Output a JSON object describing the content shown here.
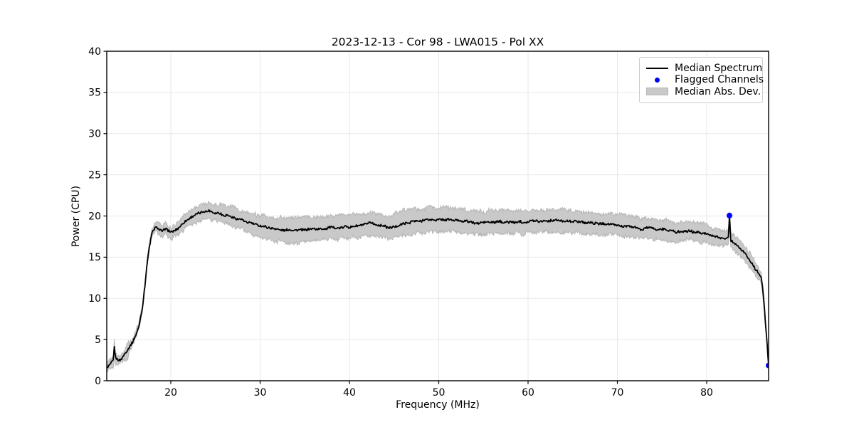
{
  "chart_data": {
    "type": "line",
    "title": "2023-12-13 - Cor 98 - LWA015 - Pol XX",
    "xlabel": "Frequency (MHz)",
    "ylabel": "Power (CPU)",
    "xlim": [
      12.83,
      86.93
    ],
    "ylim": [
      0,
      40
    ],
    "xticks": [
      20,
      30,
      40,
      50,
      60,
      70,
      80
    ],
    "yticks": [
      0,
      5,
      10,
      15,
      20,
      25,
      30,
      35,
      40
    ],
    "grid": true,
    "legend": {
      "position": "upper right",
      "entries": [
        {
          "label": "Median Spectrum",
          "type": "line",
          "color": "#000000"
        },
        {
          "label": "Flagged Channels",
          "type": "marker",
          "color": "#0000ff"
        },
        {
          "label": "Median Abs. Dev.",
          "type": "patch",
          "color": "#c9c9c9"
        }
      ]
    },
    "series": [
      {
        "name": "Median Spectrum",
        "color": "#000000",
        "points_fpm": [
          [
            12.88,
            1.6,
            0.45
          ],
          [
            13.1,
            1.85,
            0.5
          ],
          [
            13.35,
            2.15,
            0.55
          ],
          [
            13.55,
            2.35,
            0.65
          ],
          [
            13.68,
            4.05,
            0.95
          ],
          [
            13.82,
            2.75,
            0.6
          ],
          [
            14.1,
            2.45,
            0.5
          ],
          [
            14.4,
            2.6,
            0.45
          ],
          [
            14.7,
            3.0,
            0.5
          ],
          [
            15.0,
            3.45,
            0.85
          ],
          [
            15.18,
            3.75,
            1.05
          ],
          [
            15.4,
            4.15,
            0.5
          ],
          [
            15.7,
            4.65,
            0.4
          ],
          [
            16.0,
            5.35,
            0.4
          ],
          [
            16.4,
            6.5,
            0.4
          ],
          [
            16.8,
            8.6,
            0.4
          ],
          [
            17.1,
            11.5,
            0.4
          ],
          [
            17.3,
            13.8,
            0.35
          ],
          [
            17.6,
            16.2,
            0.35
          ],
          [
            17.9,
            17.9,
            0.45
          ],
          [
            18.2,
            18.5,
            0.55
          ],
          [
            18.5,
            18.65,
            0.6
          ],
          [
            18.8,
            18.3,
            0.65
          ],
          [
            19.1,
            18.1,
            0.65
          ],
          [
            19.4,
            18.55,
            0.7
          ],
          [
            19.7,
            18.25,
            0.7
          ],
          [
            20.0,
            17.95,
            0.75
          ],
          [
            20.4,
            18.2,
            0.75
          ],
          [
            20.8,
            18.45,
            0.8
          ],
          [
            21.2,
            18.9,
            0.8
          ],
          [
            21.7,
            19.4,
            0.85
          ],
          [
            22.2,
            19.75,
            0.9
          ],
          [
            22.7,
            20.1,
            0.95
          ],
          [
            23.2,
            20.4,
            1.0
          ],
          [
            23.7,
            20.65,
            1.0
          ],
          [
            24.2,
            20.6,
            1.0
          ],
          [
            24.7,
            20.45,
            1.05
          ],
          [
            25.2,
            20.35,
            1.05
          ],
          [
            25.7,
            20.2,
            1.1
          ],
          [
            26.2,
            20.1,
            1.1
          ],
          [
            26.7,
            19.95,
            1.1
          ],
          [
            27.2,
            19.8,
            1.15
          ],
          [
            27.7,
            19.6,
            1.15
          ],
          [
            28.2,
            19.4,
            1.2
          ],
          [
            28.7,
            19.2,
            1.2
          ],
          [
            29.2,
            19.0,
            1.25
          ],
          [
            29.7,
            18.85,
            1.3
          ],
          [
            30.2,
            18.7,
            1.3
          ],
          [
            31.0,
            18.55,
            1.35
          ],
          [
            32.0,
            18.4,
            1.45
          ],
          [
            33.0,
            18.3,
            1.5
          ],
          [
            34.0,
            18.3,
            1.55
          ],
          [
            35.0,
            18.35,
            1.5
          ],
          [
            36.0,
            18.4,
            1.45
          ],
          [
            37.0,
            18.5,
            1.4
          ],
          [
            38.0,
            18.55,
            1.4
          ],
          [
            39.0,
            18.6,
            1.4
          ],
          [
            40.0,
            18.7,
            1.4
          ],
          [
            41.0,
            18.85,
            1.4
          ],
          [
            42.0,
            19.05,
            1.4
          ],
          [
            42.6,
            19.1,
            1.4
          ],
          [
            43.2,
            18.9,
            1.4
          ],
          [
            44.0,
            18.75,
            1.4
          ],
          [
            44.6,
            18.6,
            1.4
          ],
          [
            45.2,
            18.8,
            1.45
          ],
          [
            46.0,
            19.1,
            1.5
          ],
          [
            47.0,
            19.3,
            1.5
          ],
          [
            48.0,
            19.45,
            1.5
          ],
          [
            49.0,
            19.5,
            1.5
          ],
          [
            50.0,
            19.6,
            1.5
          ],
          [
            51.0,
            19.6,
            1.45
          ],
          [
            52.0,
            19.5,
            1.45
          ],
          [
            53.0,
            19.35,
            1.4
          ],
          [
            54.0,
            19.2,
            1.4
          ],
          [
            55.0,
            19.15,
            1.4
          ],
          [
            56.0,
            19.25,
            1.4
          ],
          [
            57.0,
            19.3,
            1.4
          ],
          [
            58.0,
            19.3,
            1.4
          ],
          [
            59.0,
            19.25,
            1.4
          ],
          [
            60.0,
            19.3,
            1.4
          ],
          [
            61.0,
            19.4,
            1.4
          ],
          [
            62.0,
            19.45,
            1.4
          ],
          [
            63.0,
            19.5,
            1.4
          ],
          [
            64.0,
            19.45,
            1.4
          ],
          [
            65.0,
            19.35,
            1.35
          ],
          [
            66.0,
            19.25,
            1.35
          ],
          [
            67.0,
            19.15,
            1.3
          ],
          [
            68.0,
            19.05,
            1.3
          ],
          [
            69.0,
            19.0,
            1.3
          ],
          [
            70.0,
            18.9,
            1.3
          ],
          [
            71.0,
            18.75,
            1.25
          ],
          [
            72.0,
            18.55,
            1.25
          ],
          [
            72.6,
            18.35,
            1.2
          ],
          [
            73.2,
            18.55,
            1.2
          ],
          [
            74.0,
            18.45,
            1.2
          ],
          [
            75.0,
            18.35,
            1.2
          ],
          [
            76.0,
            18.2,
            1.15
          ],
          [
            76.6,
            18.0,
            1.15
          ],
          [
            77.2,
            18.2,
            1.1
          ],
          [
            78.0,
            18.15,
            1.1
          ],
          [
            79.0,
            18.0,
            1.1
          ],
          [
            80.0,
            17.85,
            1.05
          ],
          [
            80.6,
            17.6,
            1.0
          ],
          [
            81.2,
            17.5,
            1.0
          ],
          [
            81.8,
            17.3,
            1.0
          ],
          [
            82.2,
            17.4,
            0.95
          ],
          [
            82.42,
            17.35,
            0.9
          ],
          [
            82.55,
            20.0,
            0.55
          ],
          [
            82.7,
            17.1,
            0.9
          ],
          [
            83.0,
            16.85,
            0.95
          ],
          [
            83.5,
            16.4,
            0.95
          ],
          [
            84.0,
            15.8,
            0.9
          ],
          [
            84.5,
            15.1,
            0.85
          ],
          [
            85.0,
            14.4,
            0.8
          ],
          [
            85.4,
            13.7,
            0.75
          ],
          [
            85.8,
            13.0,
            0.6
          ],
          [
            86.1,
            12.4,
            0.5
          ],
          [
            86.3,
            10.8,
            0.45
          ],
          [
            86.5,
            8.2,
            0.4
          ],
          [
            86.7,
            5.4,
            0.35
          ],
          [
            86.85,
            3.0,
            0.3
          ],
          [
            86.93,
            1.85,
            0.25
          ]
        ]
      }
    ],
    "flagged_channels": [
      [
        82.55,
        20.05
      ],
      [
        86.93,
        1.85
      ]
    ],
    "colors": {
      "line": "#000000",
      "flagged": "#0000ff",
      "band_fill": "#c9c9c9",
      "band_edge": "#b6b6b6",
      "grid": "#e7e7e7",
      "spine": "#000000",
      "background": "#ffffff"
    }
  }
}
